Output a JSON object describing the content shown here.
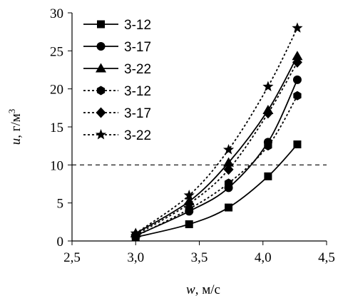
{
  "chart_data": {
    "type": "line",
    "xlabel": {
      "symbol": "w",
      "unit": ", м/с"
    },
    "ylabel": {
      "symbol": "u",
      "unit": ", г/м",
      "sup": "3"
    },
    "xlim": [
      2.5,
      4.5
    ],
    "ylim": [
      0,
      30
    ],
    "x_ticks": [
      "2,5",
      "3,0",
      "3,5",
      "4,0",
      "4,5"
    ],
    "y_ticks": [
      "0",
      "5",
      "10",
      "15",
      "20",
      "25",
      "30"
    ],
    "x_tick_values": [
      2.5,
      3.0,
      3.5,
      4.0,
      4.5
    ],
    "y_tick_values": [
      0,
      5,
      10,
      15,
      20,
      25,
      30
    ],
    "grid": false,
    "legend_position": "top-left",
    "reference_line": {
      "y": 10,
      "style": "dashed"
    },
    "series": [
      {
        "name": "3-12",
        "marker": "square",
        "line": "solid",
        "x": [
          3.0,
          3.42,
          3.73,
          4.04,
          4.27
        ],
        "y": [
          0.5,
          2.2,
          4.4,
          8.5,
          12.7
        ]
      },
      {
        "name": "3-17",
        "marker": "circle",
        "line": "solid",
        "x": [
          3.0,
          3.42,
          3.73,
          4.04,
          4.27
        ],
        "y": [
          0.7,
          3.9,
          7.0,
          13.0,
          21.2
        ]
      },
      {
        "name": "3-22",
        "marker": "triangle",
        "line": "solid",
        "x": [
          3.0,
          3.42,
          3.73,
          4.04,
          4.27
        ],
        "y": [
          1.0,
          5.2,
          10.3,
          17.2,
          24.3
        ]
      },
      {
        "name": "3-12",
        "marker": "hexagon",
        "line": "dotted",
        "x": [
          3.0,
          3.42,
          3.73,
          4.04,
          4.27
        ],
        "y": [
          0.6,
          4.2,
          7.6,
          12.5,
          19.1
        ]
      },
      {
        "name": "3-17",
        "marker": "diamond",
        "line": "dotted",
        "x": [
          3.0,
          3.42,
          3.73,
          4.04,
          4.27
        ],
        "y": [
          0.8,
          4.9,
          9.4,
          16.8,
          23.5
        ]
      },
      {
        "name": "3-22",
        "marker": "star",
        "line": "dotted",
        "x": [
          3.0,
          3.42,
          3.73,
          4.04,
          4.27
        ],
        "y": [
          1.0,
          6.0,
          12.0,
          20.3,
          28.0
        ]
      }
    ]
  }
}
